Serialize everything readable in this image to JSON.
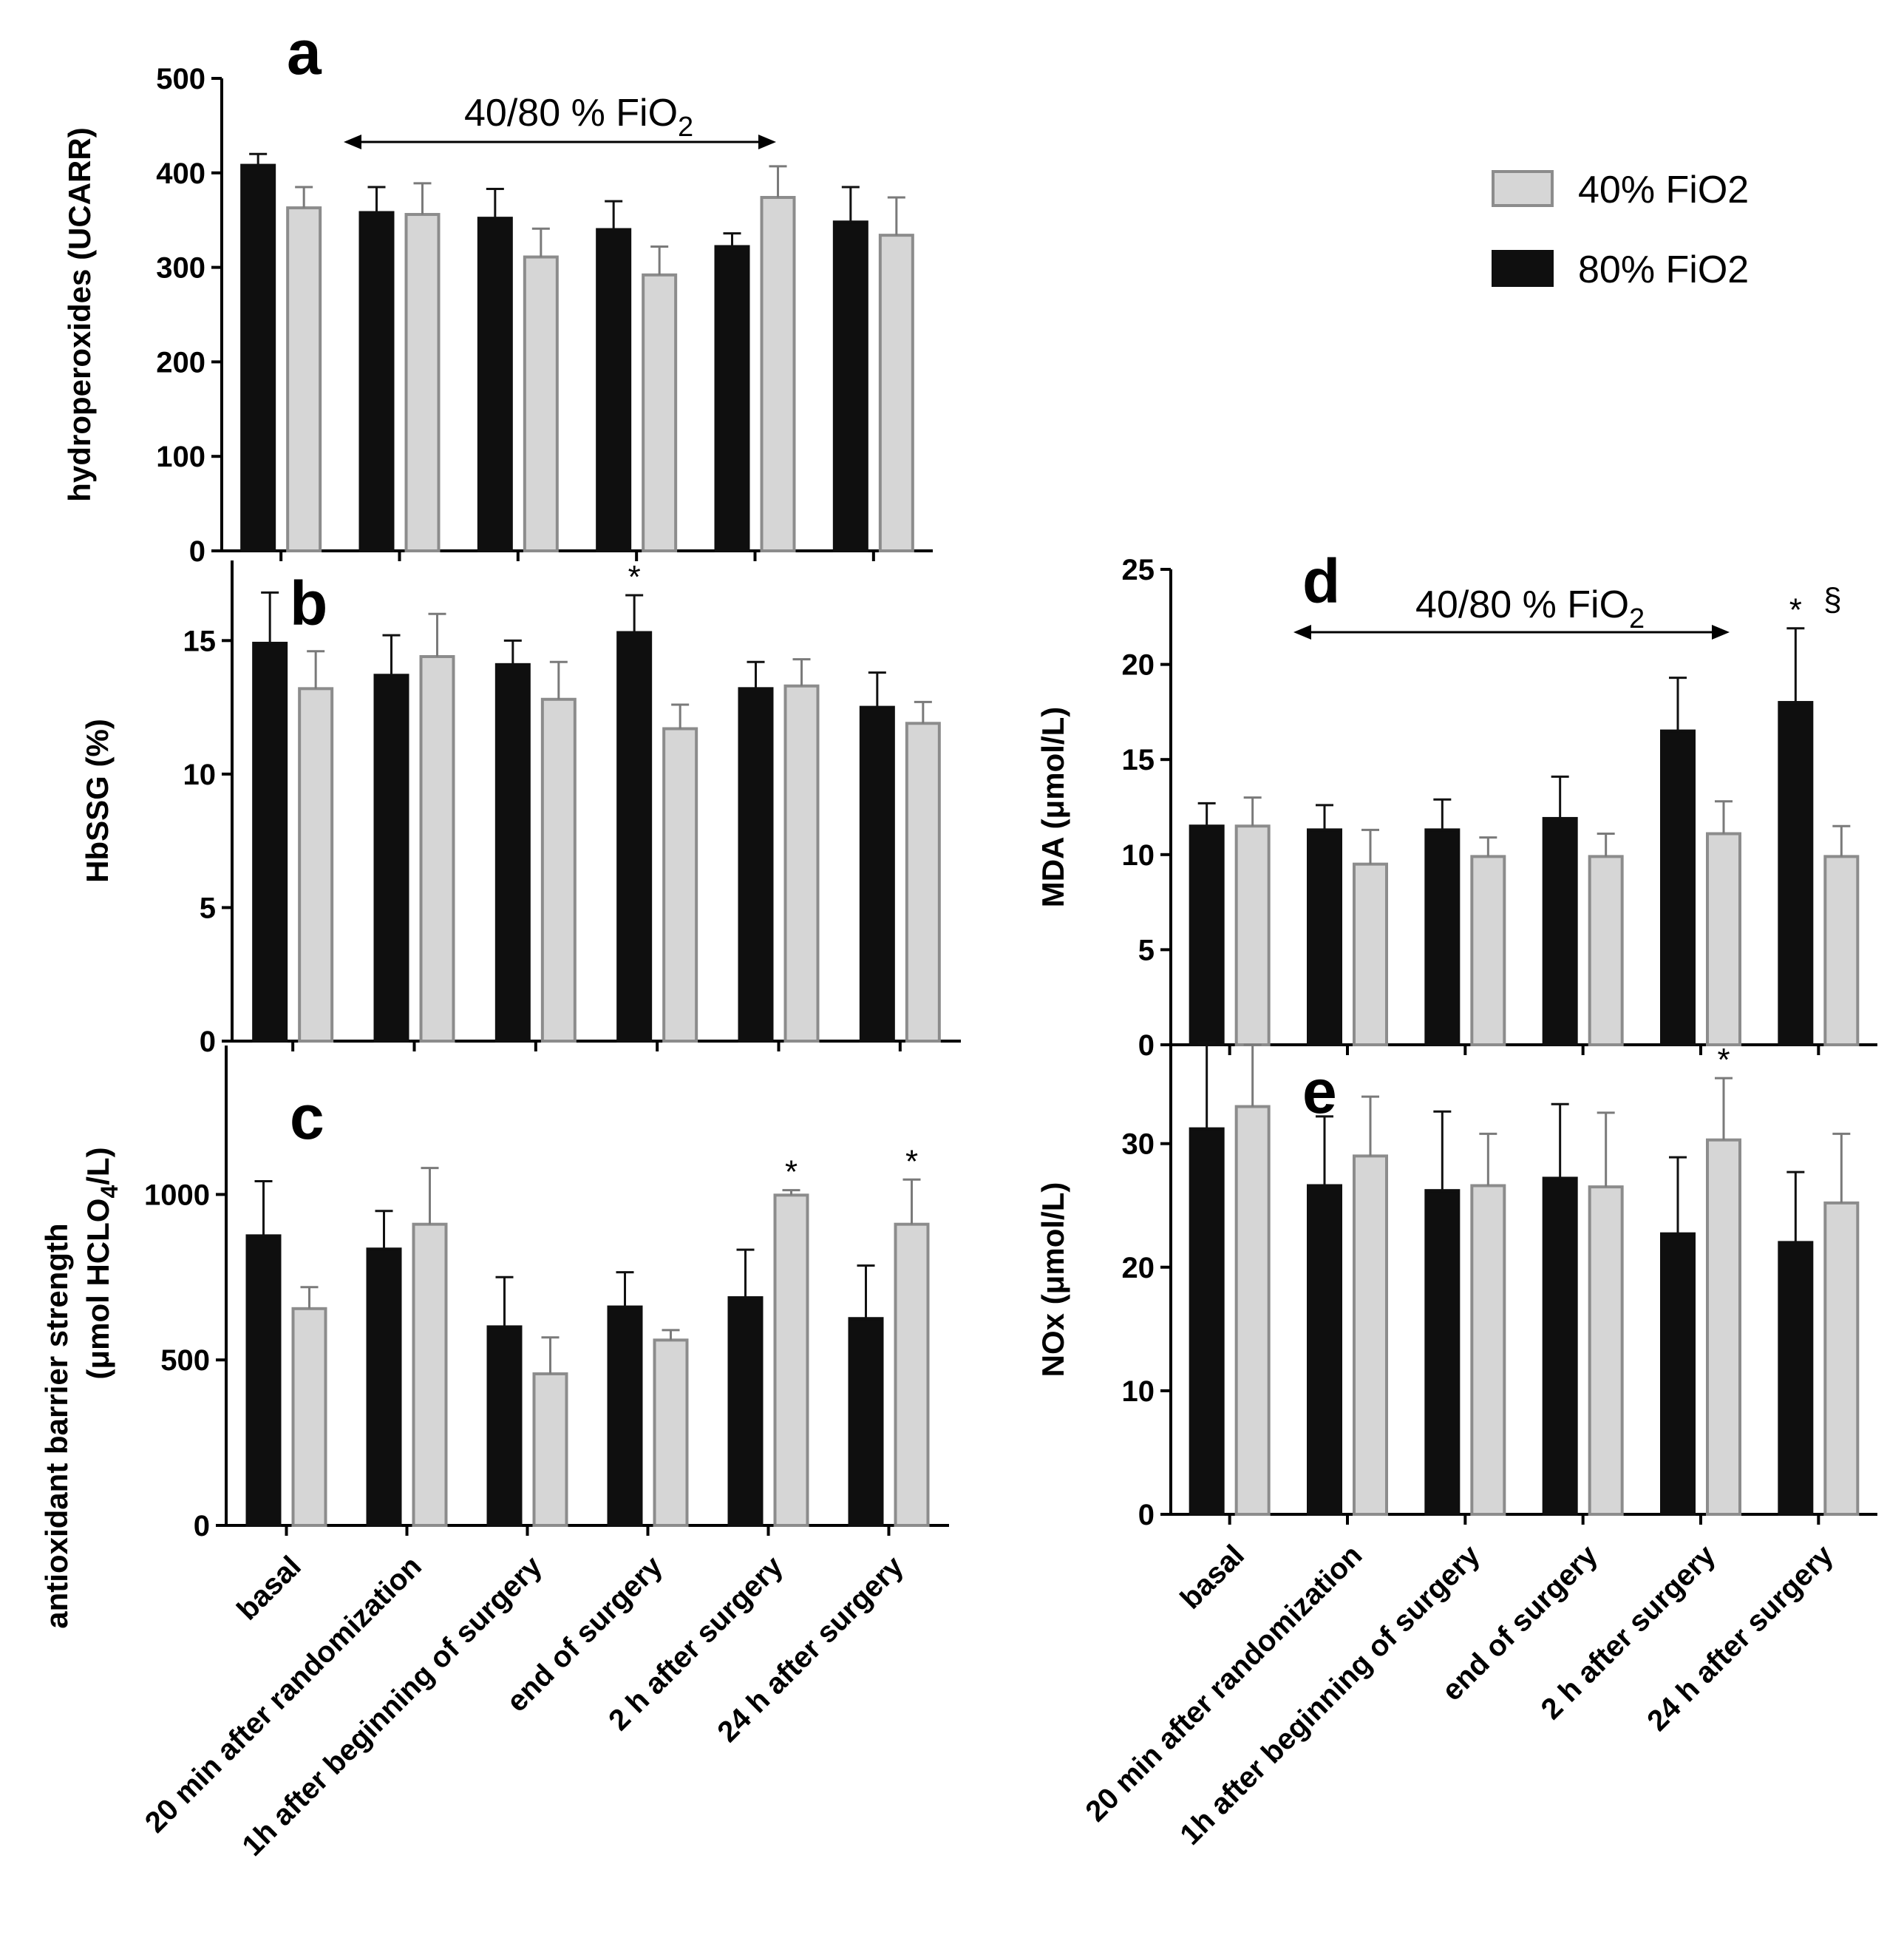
{
  "legend": [
    {
      "label": "40% FiO2",
      "color": "#d6d6d6",
      "border": "#8c8c8c"
    },
    {
      "label": "80% FiO2",
      "color": "#0f0f0f",
      "border": "#0f0f0f"
    }
  ],
  "categories": [
    "basal",
    "20 min after randomization",
    "1h after beginning of surgery",
    "end of surgery",
    "2 h after surgery",
    "24 h after surgery"
  ],
  "chart_data": [
    {
      "type": "bar",
      "panel": "a",
      "title": "",
      "ylabel": "hydroperoxides (UCARR)",
      "ylim": [
        0,
        500
      ],
      "yticks": [
        0,
        100,
        200,
        300,
        400,
        500
      ],
      "annotation": {
        "text": "40/80 % FiO",
        "sub": "2"
      },
      "series": [
        {
          "name": "80% FiO2",
          "values": [
            408,
            358,
            352,
            340,
            322,
            348
          ],
          "errors": [
            12,
            27,
            31,
            30,
            14,
            37
          ]
        },
        {
          "name": "40% FiO2",
          "values": [
            363,
            356,
            311,
            292,
            374,
            334
          ],
          "errors": [
            22,
            33,
            30,
            30,
            33,
            40
          ]
        }
      ],
      "significance": []
    },
    {
      "type": "bar",
      "panel": "b",
      "title": "",
      "ylabel": "HbSSG (%)",
      "ylim": [
        0,
        18
      ],
      "yticks": [
        0,
        5,
        10,
        15
      ],
      "series": [
        {
          "name": "80% FiO2",
          "values": [
            14.9,
            13.7,
            14.1,
            15.3,
            13.2,
            12.5
          ],
          "errors": [
            1.9,
            1.5,
            0.9,
            1.4,
            1.0,
            1.3
          ]
        },
        {
          "name": "40% FiO2",
          "values": [
            13.2,
            14.4,
            12.8,
            11.7,
            13.3,
            11.9
          ],
          "errors": [
            1.4,
            1.6,
            1.4,
            0.9,
            1.0,
            0.8
          ]
        }
      ],
      "significance": [
        {
          "category": 3,
          "series": "80% FiO2",
          "text": "*"
        }
      ]
    },
    {
      "type": "bar",
      "panel": "c",
      "title": "",
      "ylabel": "antioxidant barrier strength",
      "ylabel2": {
        "text": "(μmol HCLO",
        "sub": "4",
        "tail": "/L)"
      },
      "ylim": [
        0,
        1450
      ],
      "yticks": [
        0,
        500,
        1000
      ],
      "series": [
        {
          "name": "80% FiO2",
          "values": [
            875,
            835,
            600,
            660,
            688,
            625
          ],
          "errors": [
            165,
            115,
            150,
            105,
            145,
            160
          ]
        },
        {
          "name": "40% FiO2",
          "values": [
            655,
            910,
            458,
            560,
            998,
            910
          ],
          "errors": [
            65,
            170,
            110,
            30,
            15,
            135
          ]
        }
      ],
      "significance": [
        {
          "category": 4,
          "series": "40% FiO2",
          "text": "*"
        },
        {
          "category": 5,
          "series": "40% FiO2",
          "text": "*"
        }
      ]
    },
    {
      "type": "bar",
      "panel": "d",
      "title": "",
      "ylabel": "MDA (μmol/L)",
      "ylim": [
        0,
        25
      ],
      "yticks": [
        0,
        5,
        10,
        15,
        20,
        25
      ],
      "annotation": {
        "text": "40/80 % FiO",
        "sub": "2"
      },
      "series": [
        {
          "name": "80% FiO2",
          "values": [
            11.5,
            11.3,
            11.3,
            11.9,
            16.5,
            18.0
          ],
          "errors": [
            1.2,
            1.3,
            1.6,
            2.2,
            2.8,
            3.9
          ]
        },
        {
          "name": "40% FiO2",
          "values": [
            11.5,
            9.5,
            9.9,
            9.9,
            11.1,
            9.9
          ],
          "errors": [
            1.5,
            1.8,
            1.0,
            1.2,
            1.7,
            1.6
          ]
        }
      ],
      "significance": [
        {
          "category": 5,
          "series": "80% FiO2",
          "text": "*"
        },
        {
          "category": 5,
          "series": "80% FiO2",
          "text": "§",
          "offset": true
        }
      ]
    },
    {
      "type": "bar",
      "panel": "e",
      "title": "",
      "ylabel": "NOx (μmol/L)",
      "ylim": [
        0,
        38
      ],
      "yticks": [
        0,
        10,
        20,
        30
      ],
      "series": [
        {
          "name": "80% FiO2",
          "values": [
            31.2,
            26.6,
            26.2,
            27.2,
            22.7,
            22.0
          ],
          "errors": [
            7.0,
            5.6,
            6.4,
            6.0,
            6.2,
            5.7
          ]
        },
        {
          "name": "40% FiO2",
          "values": [
            33.0,
            29.0,
            26.6,
            26.5,
            30.3,
            25.2
          ],
          "errors": [
            5.0,
            4.8,
            4.2,
            6.0,
            5.0,
            5.6
          ]
        }
      ],
      "significance": [
        {
          "category": 4,
          "series": "40% FiO2",
          "text": "*"
        }
      ]
    }
  ]
}
